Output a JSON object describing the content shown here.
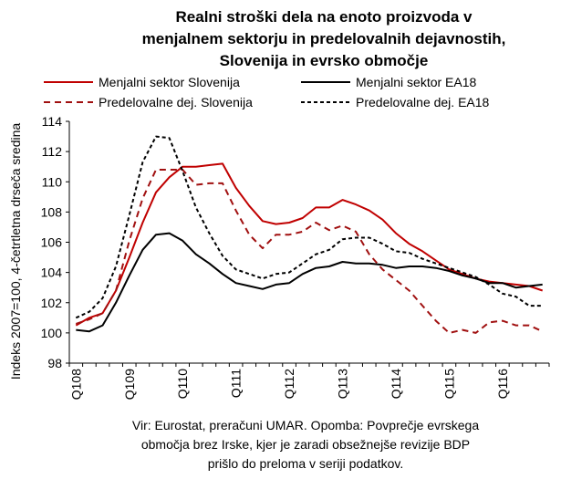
{
  "chart_data": {
    "type": "line",
    "title": [
      "Realni stroški dela na enoto proizvoda v",
      "menjalnem sektorju in predelovalnih dejavnostih,",
      "Slovenija in evrsko območje"
    ],
    "ylabel": "Indeks 2007=100, 4-četrtletna drseča sredina",
    "xlabel": "",
    "ylim": [
      98,
      114
    ],
    "yticks": [
      98,
      100,
      102,
      104,
      106,
      108,
      110,
      112,
      114
    ],
    "x_tick_labels": [
      "Q108",
      "Q109",
      "Q110",
      "Q111",
      "Q112",
      "Q113",
      "Q114",
      "Q115",
      "Q116"
    ],
    "x_tick_index": [
      0,
      4,
      8,
      12,
      16,
      20,
      24,
      28,
      32
    ],
    "x_count": 36,
    "grid": false,
    "legend_placement": "top, two columns",
    "series": [
      {
        "name": "Menjalni sektor Slovenija",
        "color": "#c00000",
        "style": "solid",
        "values": [
          100.5,
          101.0,
          101.3,
          102.8,
          105.0,
          107.3,
          109.3,
          110.3,
          111.0,
          111.0,
          111.1,
          111.2,
          109.6,
          108.4,
          107.4,
          107.2,
          107.3,
          107.6,
          108.3,
          108.3,
          108.8,
          108.5,
          108.1,
          107.5,
          106.6,
          105.9,
          105.4,
          104.8,
          104.2,
          103.9,
          103.6,
          103.4,
          103.3,
          103.2,
          103.1,
          102.8
        ]
      },
      {
        "name": "Menjalni sektor EA18",
        "color": "#000000",
        "style": "solid",
        "values": [
          100.2,
          100.1,
          100.5,
          102.0,
          103.8,
          105.5,
          106.5,
          106.6,
          106.1,
          105.2,
          104.6,
          103.9,
          103.3,
          103.1,
          102.9,
          103.2,
          103.3,
          103.9,
          104.3,
          104.4,
          104.7,
          104.6,
          104.6,
          104.5,
          104.3,
          104.4,
          104.4,
          104.3,
          104.1,
          103.8,
          103.6,
          103.3,
          103.3,
          103.0,
          103.1,
          103.2
        ]
      },
      {
        "name": "Predelovalne dej. Slovenija",
        "color": "#a01010",
        "style": "dashed",
        "values": [
          100.6,
          100.9,
          101.3,
          102.8,
          106.1,
          108.9,
          110.8,
          110.8,
          110.8,
          109.8,
          109.9,
          109.9,
          108.1,
          106.5,
          105.6,
          106.5,
          106.5,
          106.7,
          107.3,
          106.8,
          107.1,
          106.7,
          105.2,
          104.2,
          103.5,
          102.8,
          101.8,
          100.8,
          100.0,
          100.2,
          100.0,
          100.7,
          100.8,
          100.5,
          100.5,
          100.1
        ]
      },
      {
        "name": "Predelovalne dej. EA18",
        "color": "#000000",
        "style": "dotted",
        "values": [
          101.0,
          101.4,
          102.3,
          104.4,
          107.8,
          111.3,
          113.0,
          112.9,
          110.7,
          108.3,
          106.6,
          105.1,
          104.2,
          103.9,
          103.6,
          103.9,
          104.0,
          104.6,
          105.2,
          105.5,
          106.2,
          106.3,
          106.3,
          105.9,
          105.4,
          105.3,
          104.9,
          104.6,
          104.3,
          104.0,
          103.7,
          103.2,
          102.6,
          102.4,
          101.8,
          101.8
        ]
      }
    ]
  },
  "source_note": [
    "Vir: Eurostat, preračuni UMAR. Opomba: Povprečje evrskega",
    "območja brez Irske, kjer je zaradi obsežnejše revizije BDP",
    "prišlo do preloma v seriji podatkov."
  ]
}
